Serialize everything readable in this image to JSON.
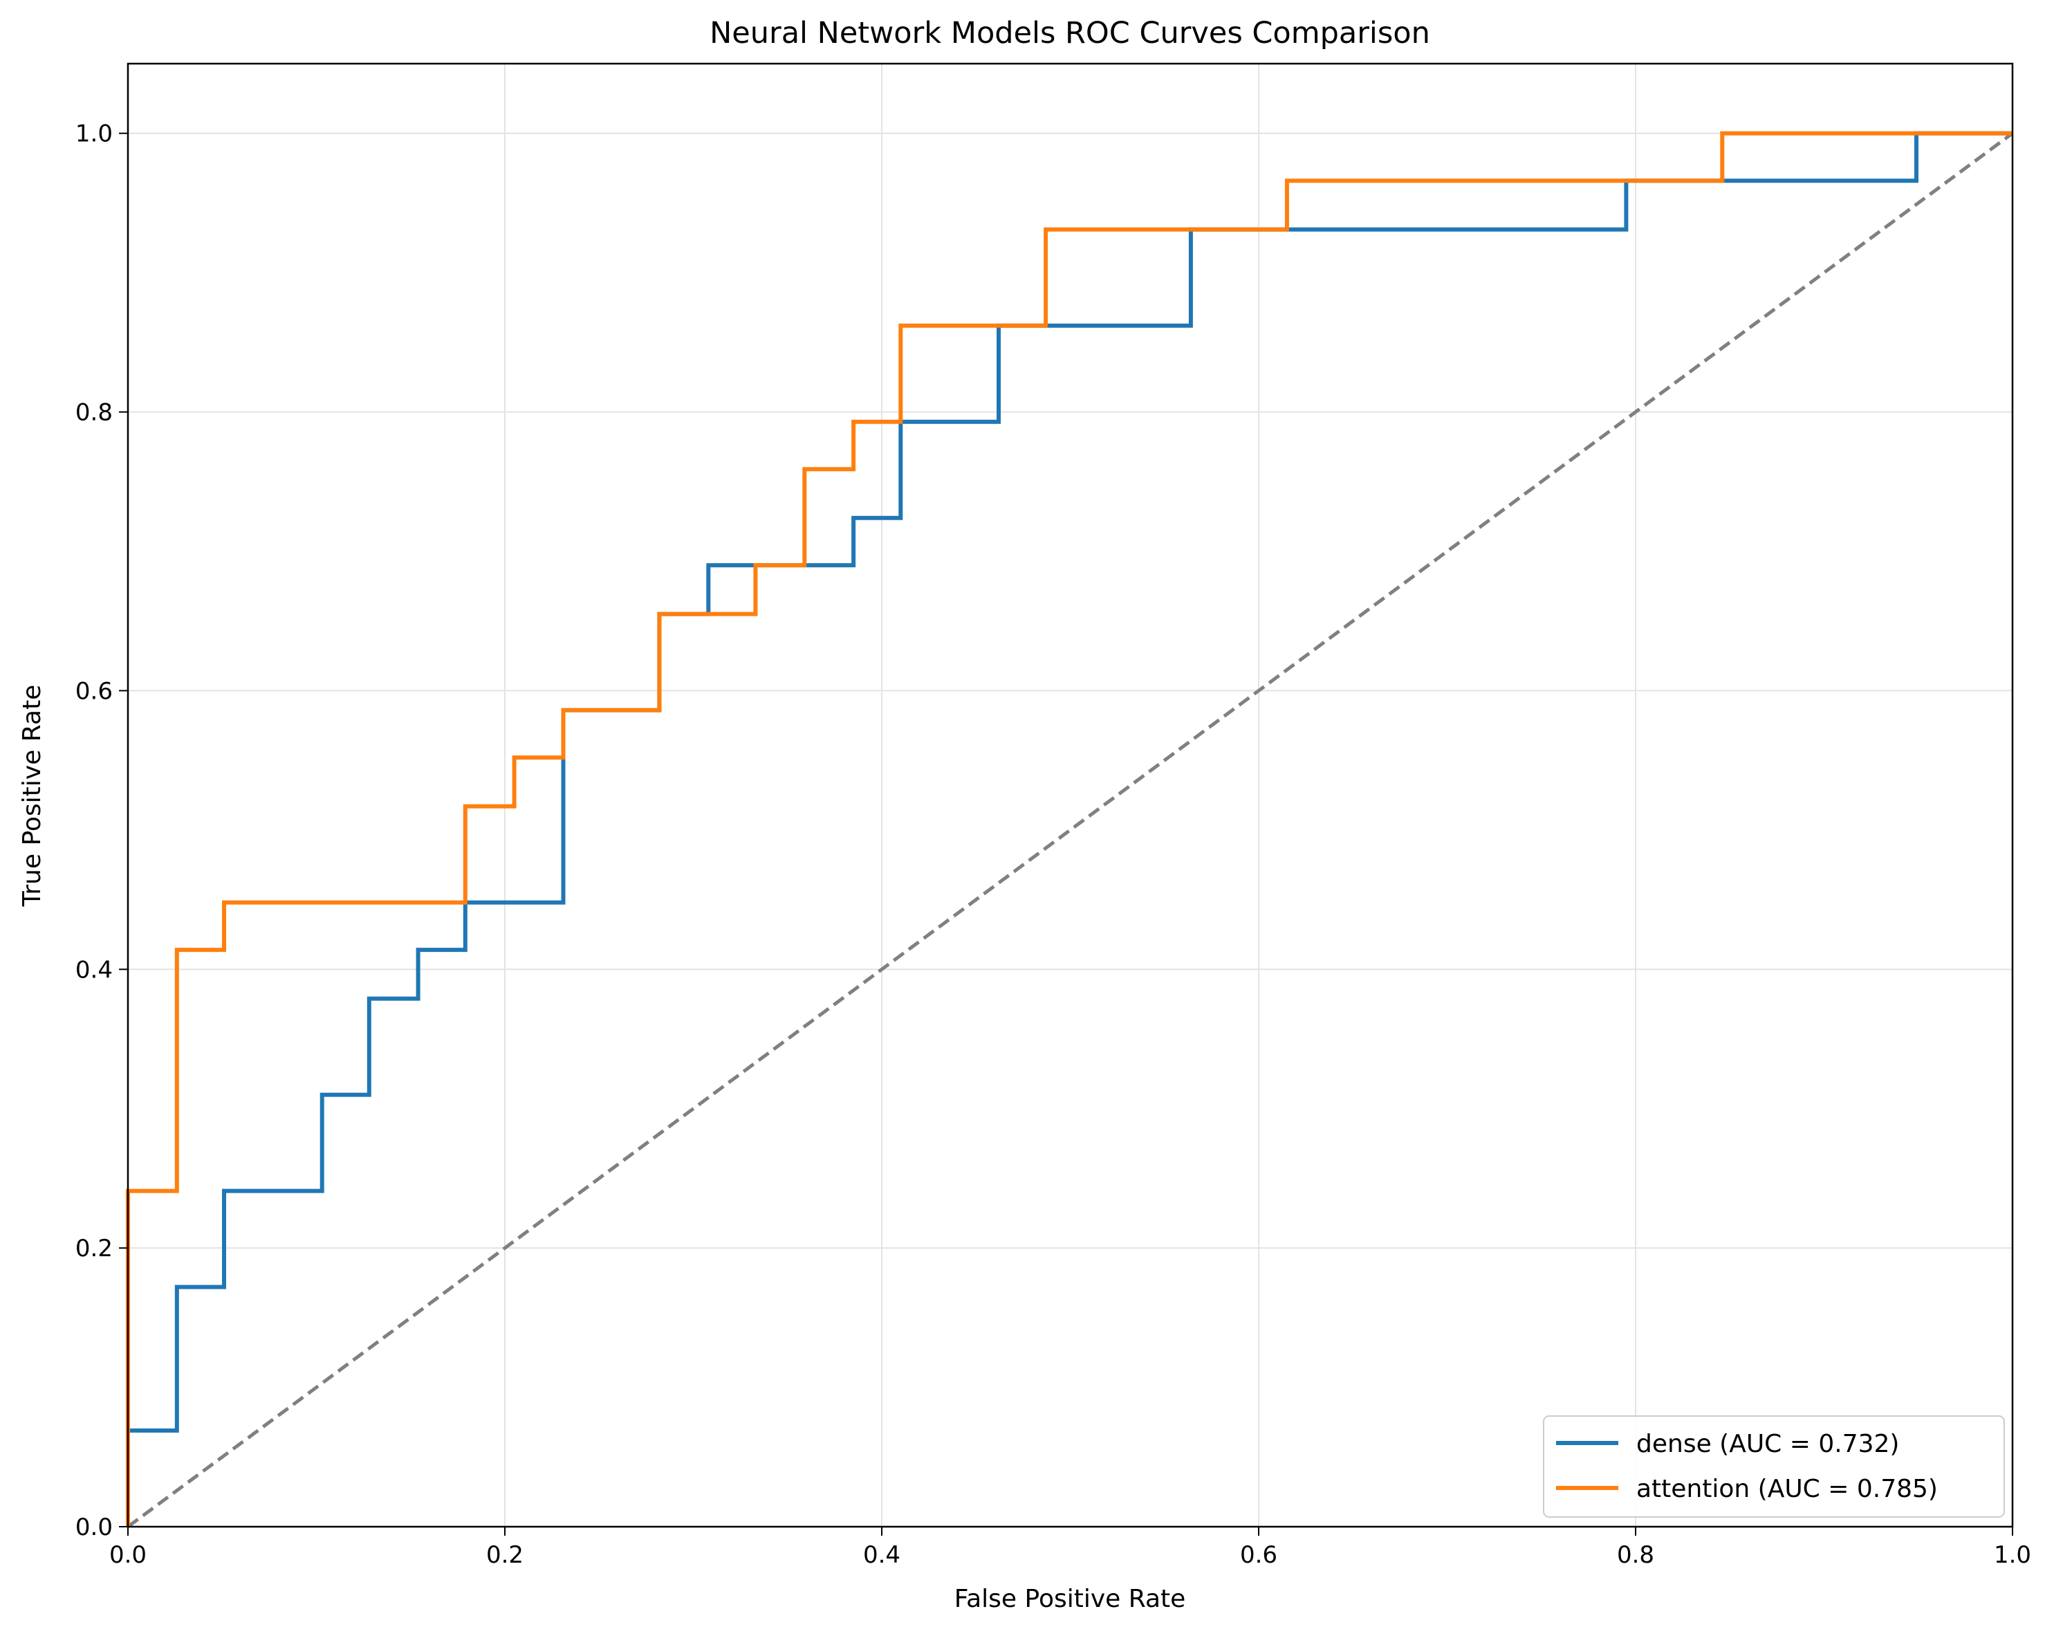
{
  "chart_data": {
    "type": "line",
    "title": "Neural Network Models ROC Curves Comparison",
    "xlabel": "False Positive Rate",
    "ylabel": "True Positive Rate",
    "xlim": [
      0.0,
      1.0
    ],
    "ylim": [
      0.0,
      1.05
    ],
    "xticks": [
      "0.0",
      "0.2",
      "0.4",
      "0.6",
      "0.8",
      "1.0"
    ],
    "yticks": [
      "0.0",
      "0.2",
      "0.4",
      "0.6",
      "0.8",
      "1.0"
    ],
    "grid": true,
    "legend_position": "lower-right",
    "series": [
      {
        "name": "dense (AUC = 0.732)",
        "color": "#1f77b4",
        "x": [
          0,
          0,
          0.026,
          0.026,
          0.051,
          0.051,
          0.103,
          0.103,
          0.128,
          0.128,
          0.154,
          0.154,
          0.179,
          0.179,
          0.231,
          0.231,
          0.282,
          0.282,
          0.308,
          0.308,
          0.385,
          0.385,
          0.41,
          0.41,
          0.462,
          0.462,
          0.564,
          0.564,
          0.795,
          0.795,
          0.949,
          0.949,
          1.0
        ],
        "y": [
          0,
          0.069,
          0.069,
          0.172,
          0.172,
          0.241,
          0.241,
          0.31,
          0.31,
          0.379,
          0.379,
          0.414,
          0.414,
          0.448,
          0.448,
          0.586,
          0.586,
          0.655,
          0.655,
          0.69,
          0.69,
          0.724,
          0.724,
          0.793,
          0.793,
          0.862,
          0.862,
          0.931,
          0.931,
          0.966,
          0.966,
          1.0,
          1.0
        ]
      },
      {
        "name": "attention (AUC = 0.785)",
        "color": "#ff7f0e",
        "x": [
          0,
          0,
          0.026,
          0.026,
          0.051,
          0.051,
          0.179,
          0.179,
          0.205,
          0.205,
          0.231,
          0.231,
          0.282,
          0.282,
          0.333,
          0.333,
          0.359,
          0.359,
          0.385,
          0.385,
          0.41,
          0.41,
          0.487,
          0.487,
          0.615,
          0.615,
          0.846,
          0.846,
          1.0
        ],
        "y": [
          0,
          0.241,
          0.241,
          0.414,
          0.414,
          0.448,
          0.448,
          0.517,
          0.517,
          0.552,
          0.552,
          0.586,
          0.586,
          0.655,
          0.655,
          0.69,
          0.69,
          0.759,
          0.759,
          0.793,
          0.793,
          0.862,
          0.862,
          0.931,
          0.931,
          0.966,
          0.966,
          1.0,
          1.0
        ]
      }
    ],
    "reference_line": {
      "x": [
        0,
        1
      ],
      "y": [
        0,
        1
      ],
      "color": "#808080",
      "style": "dashed"
    }
  }
}
